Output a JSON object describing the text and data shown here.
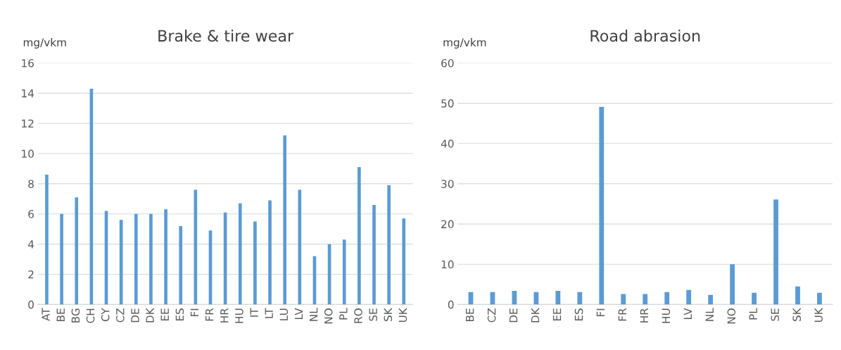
{
  "chart_data": [
    {
      "type": "bar",
      "title": "Brake & tire wear",
      "ylabel": "mg/vkm",
      "color": "#5b9bd5",
      "grid": "y",
      "ylim": [
        0,
        16
      ],
      "yticks": [
        0,
        2,
        4,
        6,
        8,
        10,
        12,
        14,
        16
      ],
      "categories": [
        "AT",
        "BE",
        "BG",
        "CH",
        "CY",
        "CZ",
        "DE",
        "DK",
        "EE",
        "ES",
        "FI",
        "FR",
        "HR",
        "HU",
        "IT",
        "LT",
        "LU",
        "LV",
        "NL",
        "NO",
        "PL",
        "RO",
        "SE",
        "SK",
        "UK"
      ],
      "values": [
        8.6,
        6.0,
        7.1,
        14.3,
        6.2,
        5.6,
        6.0,
        6.0,
        6.3,
        5.2,
        7.6,
        4.9,
        6.1,
        6.7,
        5.5,
        6.9,
        11.2,
        7.6,
        3.2,
        4.0,
        4.3,
        9.1,
        6.6,
        7.9,
        5.7
      ]
    },
    {
      "type": "bar",
      "title": "Road abrasion",
      "ylabel": "mg/vkm",
      "color": "#5b9bd5",
      "grid": "y",
      "ylim": [
        0,
        60
      ],
      "yticks": [
        0,
        10,
        20,
        30,
        40,
        50,
        60
      ],
      "categories": [
        "BE",
        "CZ",
        "DE",
        "DK",
        "EE",
        "ES",
        "FI",
        "FR",
        "HR",
        "HU",
        "LV",
        "NL",
        "NO",
        "PL",
        "SE",
        "SK",
        "UK"
      ],
      "values": [
        3.1,
        3.1,
        3.4,
        3.1,
        3.4,
        3.1,
        49.1,
        2.6,
        2.6,
        3.1,
        3.6,
        2.4,
        10.0,
        2.9,
        26.1,
        4.5,
        2.9
      ]
    }
  ]
}
